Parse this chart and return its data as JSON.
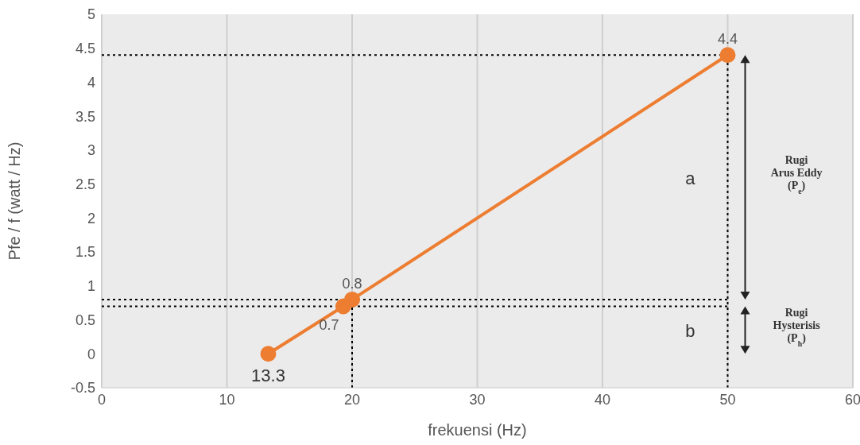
{
  "chart_data": {
    "type": "line",
    "xlabel": "frekuensi (Hz)",
    "ylabel": "Pfe / f (watt / Hz)",
    "x": [
      13.3,
      19.3,
      20,
      50
    ],
    "series": [
      {
        "color": "#ed7d31",
        "values": [
          0,
          0.7,
          0.8,
          4.4
        ],
        "value_labels": [
          null,
          "0.7",
          "0.8",
          "4.4"
        ]
      }
    ],
    "xlim": [
      0,
      60
    ],
    "xticks": [
      0,
      10,
      20,
      30,
      40,
      50,
      60
    ],
    "ylim": [
      -0.5,
      5
    ],
    "yticks": [
      -0.5,
      0,
      0.5,
      1,
      1.5,
      2,
      2.5,
      3,
      3.5,
      4,
      4.5,
      5
    ],
    "grid": "x",
    "marker": "circle",
    "line_style": "solid",
    "legend": false,
    "ref_lines": [
      {
        "axis": "y",
        "value": 4.4,
        "line_style": "dotted",
        "color": "#000000"
      },
      {
        "axis": "y",
        "value": 0.8,
        "line_style": "dotted",
        "color": "#000000"
      },
      {
        "axis": "y",
        "value": 0.7,
        "line_style": "dotted",
        "color": "#000000"
      },
      {
        "axis": "x",
        "value": 50,
        "line_style": "dotted",
        "color": "#000000"
      },
      {
        "axis": "x",
        "value": 20,
        "line_style": "dotted",
        "color": "#000000"
      }
    ],
    "annotations": [
      {
        "text": "13.3",
        "x": 13.3,
        "y": 0
      },
      "a",
      "b",
      "Rugi\nArus Eddy\n(P$_{e}$)",
      "Rugi\nHysterisis\n(P$_{h}$)"
    ]
  }
}
